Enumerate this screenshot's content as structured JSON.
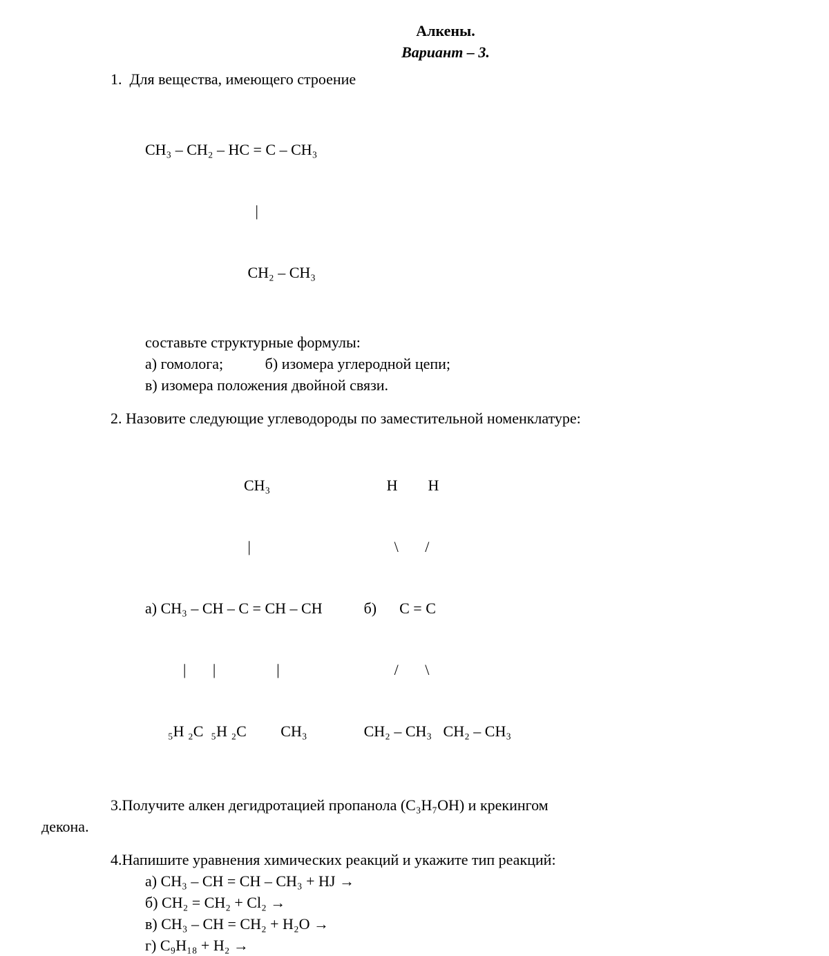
{
  "title": "Алкены.",
  "subtitle": "Вариант – 3.",
  "q1": {
    "number": "1.",
    "intro": "Для вещества, имеющего строение",
    "formula_line1": "CH₃ – CH₂ – HC = C – CH₃",
    "formula_line2": "                             |",
    "formula_line3": "                           CH₂ – CH₃",
    "task": "составьте структурные формулы:",
    "a": "а) гомолога;",
    "b": "б) изомера углеродной цепи;",
    "c": "в) изомера положения двойной связи."
  },
  "q2": {
    "number": "2.",
    "intro": "Назовите следующие углеводороды по заместительной номенклатуре:",
    "struct_a_l1": "                          CH₃",
    "struct_a_l2": "                           |",
    "struct_a_l3": "а) CH₃ – CH – C = CH – CH",
    "struct_a_l4": "          |       |                |",
    "struct_a_l5": "      ₅H ₂C  ₅H ₂C         CH₃",
    "struct_b_l1": "      H        H",
    "struct_b_l2": "        \\       /",
    "struct_b_l3": "б)      C = C",
    "struct_b_l4": "        /       \\",
    "struct_b_l5": "CH₂ – CH₃   CH₂ – CH₃"
  },
  "q3": {
    "number": "3.",
    "text": "Получите алкен дегидротацией пропанола (C₃H₇OH) и крекингом",
    "cont": "декона."
  },
  "q4": {
    "number": "4.",
    "text": "Напишите уравнения химических реакций и укажите тип реакций:",
    "a": "а) CH₃ – CH = CH – CH₃ + HJ →",
    "b": "б) CH₂ = CH₂ + Cl₂ →",
    "c": "в) CH₃ – CH = CH₂ + H₂O →",
    "d": "г) C₉H₁₈ + H₂ →"
  }
}
